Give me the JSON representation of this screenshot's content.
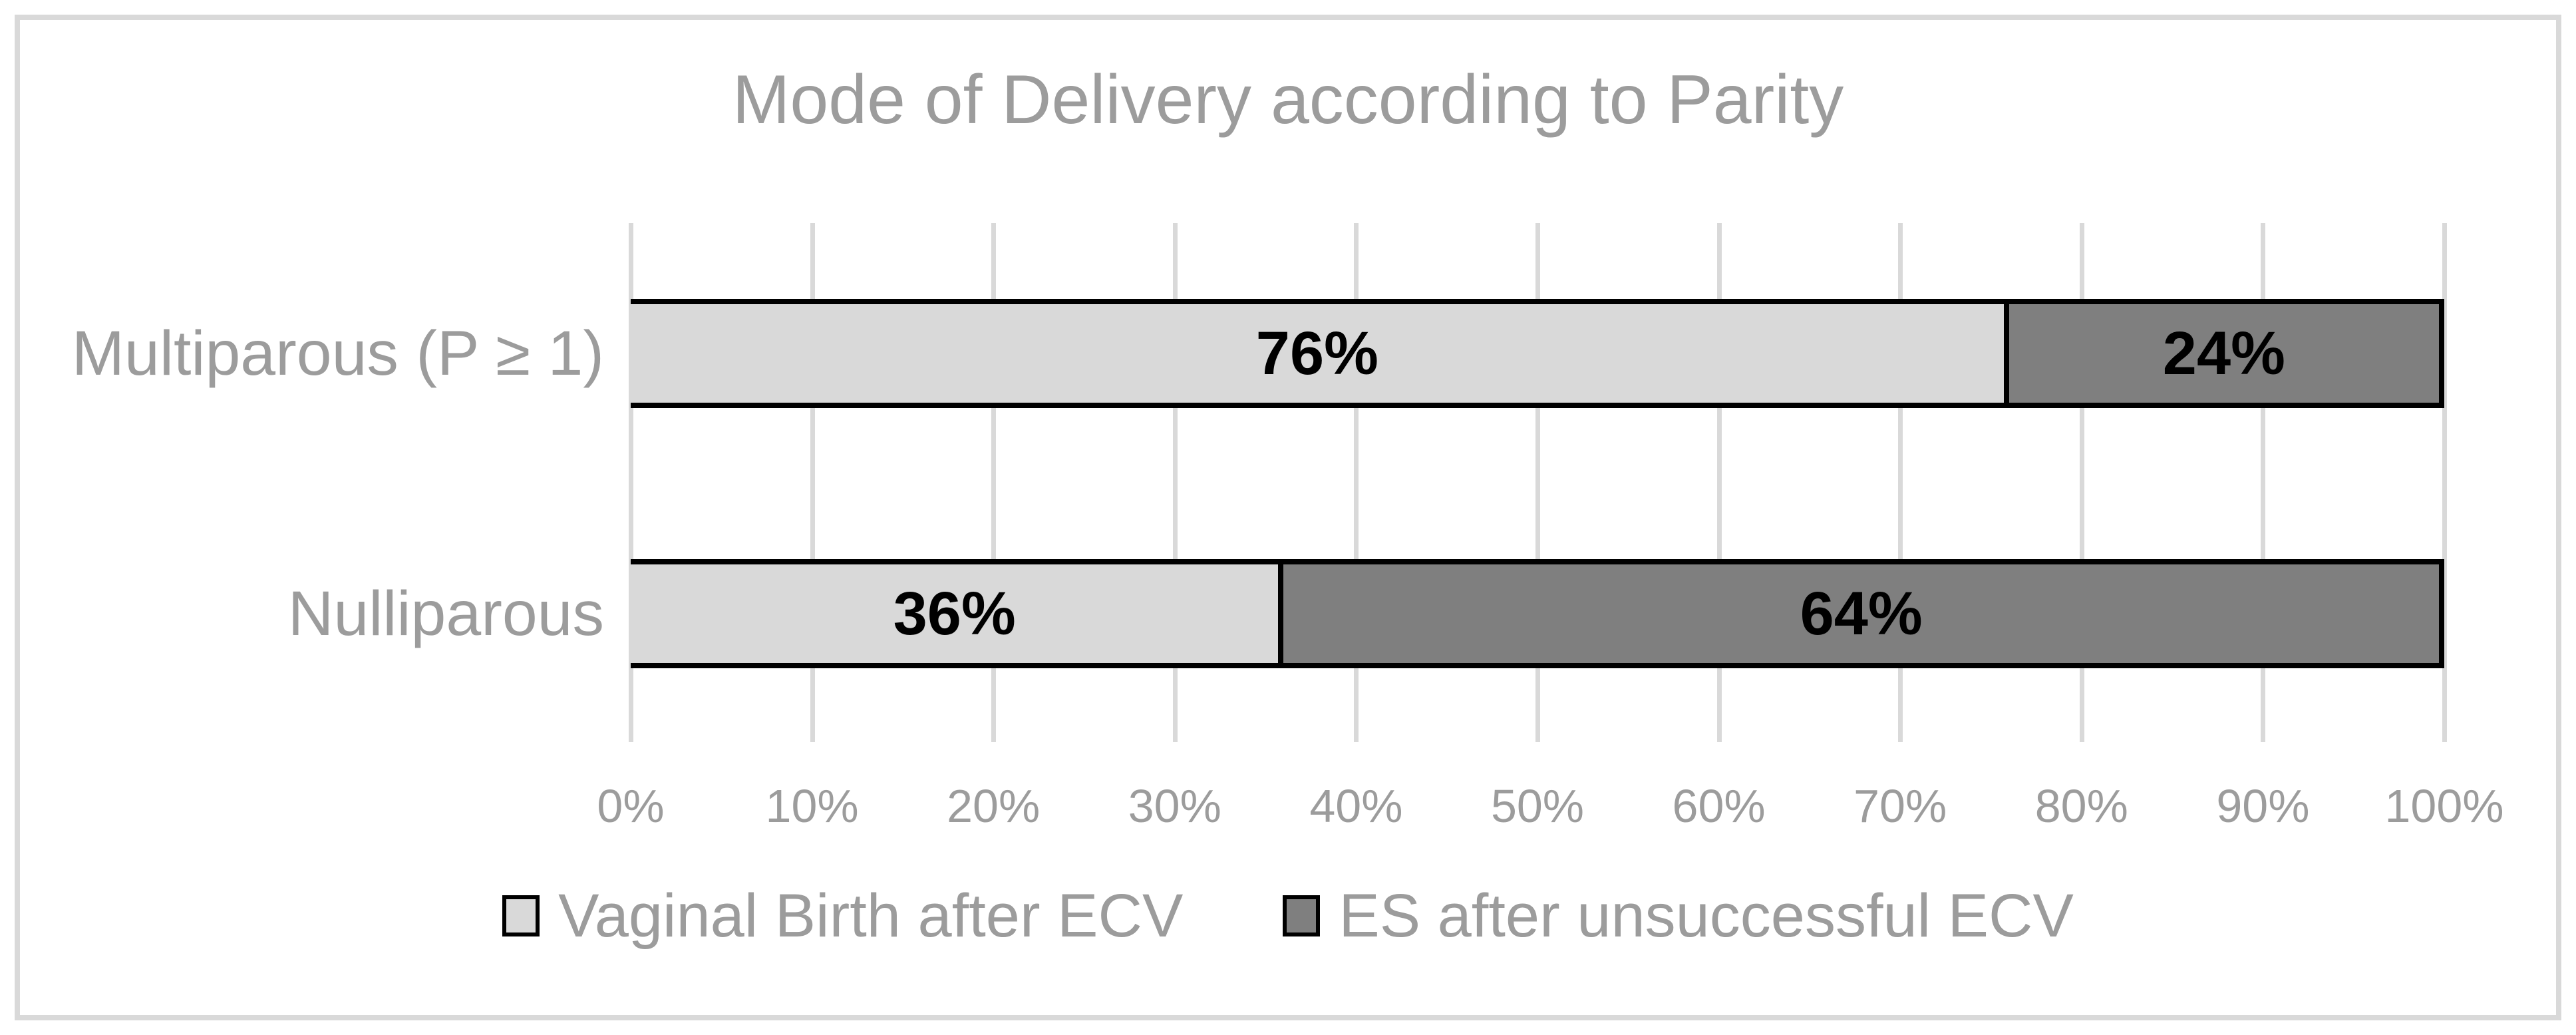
{
  "chart": {
    "title": "Mode of Delivery according to Parity"
  },
  "chart_data": {
    "type": "bar",
    "orientation": "horizontal",
    "stacked": true,
    "title": "Mode of Delivery according to Parity",
    "categories": [
      "Multiparous (P ≥ 1)",
      "Nulliparous"
    ],
    "series": [
      {
        "name": "Vaginal Birth after ECV",
        "color": "#D9D9D9",
        "values": [
          76,
          36
        ]
      },
      {
        "name": "ES after unsuccessful ECV",
        "color": "#7F7F7F",
        "values": [
          24,
          64
        ]
      }
    ],
    "data_labels": [
      [
        "76%",
        "24%"
      ],
      [
        "36%",
        "64%"
      ]
    ],
    "xlabel": "",
    "ylabel": "",
    "xlim": [
      0,
      100
    ],
    "x_tick_labels": [
      "0%",
      "10%",
      "20%",
      "30%",
      "40%",
      "50%",
      "60%",
      "70%",
      "80%",
      "90%",
      "100%"
    ],
    "grid": "vertical",
    "legend_position": "bottom",
    "colors": {
      "bar_outline": "#000000",
      "gridline": "#D9D9D9",
      "frame_border": "#D9D9D9",
      "text_gray": "#9C9C9C",
      "data_label": "#000000",
      "background": "#FFFFFF"
    }
  }
}
